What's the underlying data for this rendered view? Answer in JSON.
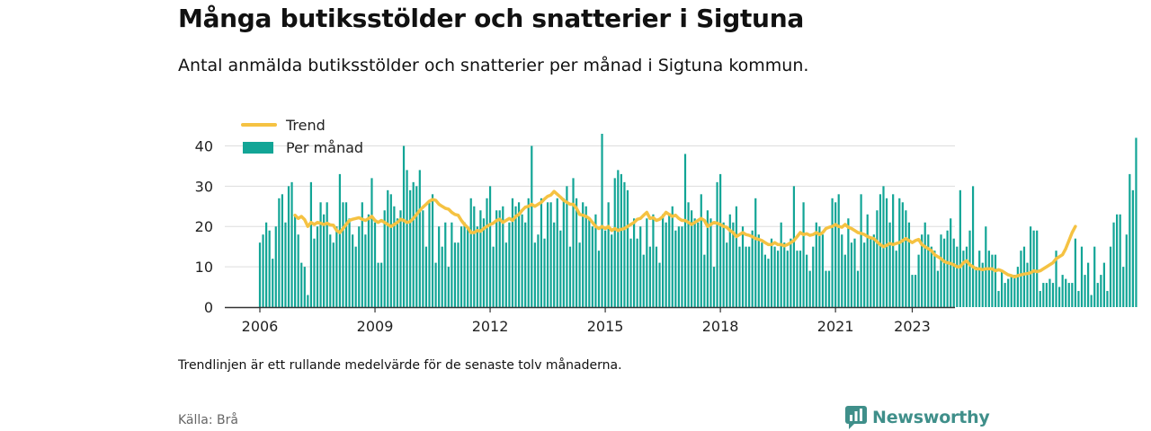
{
  "title": "Många butiksstölder och snatterier i Sigtuna",
  "subtitle": "Antal anmälda butiksstölder och snatterier per månad i Sigtuna kommun.",
  "note": "Trendlinjen är ett rullande medelvärde för de senaste tolv månaderna.",
  "source": "Källa: Brå",
  "brand": {
    "name": "Newsworthy",
    "icon": "newsworthy-logo-icon"
  },
  "colors": {
    "bars": "#12a596",
    "trend": "#f5c242",
    "axis": "#333333",
    "grid": "#dddddd"
  },
  "chart_data": {
    "type": "bar",
    "x_start": "2006-01",
    "x_end": "2023-04",
    "ylim": [
      0,
      43
    ],
    "yticks": [
      0,
      10,
      20,
      30,
      40
    ],
    "xticks": [
      "2006",
      "2009",
      "2012",
      "2015",
      "2018",
      "2021",
      "2023"
    ],
    "grid": true,
    "legend_position": "top-left",
    "series": [
      {
        "name": "Per månad",
        "type": "bar",
        "values": [
          16,
          18,
          21,
          19,
          12,
          20,
          27,
          28,
          21,
          30,
          31,
          23,
          18,
          11,
          10,
          3,
          31,
          17,
          20,
          26,
          23,
          26,
          18,
          16,
          20,
          33,
          26,
          26,
          22,
          18,
          15,
          20,
          26,
          18,
          23,
          32,
          21,
          11,
          11,
          24,
          29,
          28,
          25,
          22,
          24,
          40,
          34,
          29,
          31,
          30,
          34,
          24,
          15,
          26,
          28,
          11,
          20,
          15,
          21,
          10,
          21,
          16,
          16,
          20,
          21,
          20,
          27,
          25,
          20,
          24,
          22,
          27,
          30,
          15,
          24,
          24,
          25,
          16,
          21,
          27,
          25,
          26,
          23,
          21,
          27,
          40,
          16,
          18,
          27,
          17,
          26,
          26,
          21,
          27,
          19,
          27,
          30,
          15,
          32,
          27,
          16,
          26,
          25,
          22,
          20,
          23,
          14,
          43,
          19,
          26,
          18,
          32,
          34,
          33,
          31,
          29,
          17,
          22,
          17,
          20,
          13,
          22,
          15,
          23,
          15,
          11,
          23,
          21,
          23,
          25,
          19,
          20,
          20,
          38,
          26,
          24,
          22,
          21,
          28,
          13,
          24,
          22,
          10,
          31,
          33,
          21,
          16,
          23,
          21,
          25,
          15,
          20,
          15,
          15,
          19,
          27,
          18,
          16,
          13,
          12,
          17,
          15,
          14,
          21,
          16,
          14,
          17,
          30,
          14,
          14,
          26,
          13,
          9,
          15,
          21,
          20,
          18,
          9,
          9,
          27,
          26,
          28,
          18,
          13,
          22,
          16,
          17,
          9,
          28,
          16,
          23,
          17,
          18,
          24,
          28,
          30,
          27,
          21,
          28,
          14,
          27,
          26,
          24,
          21,
          8,
          8,
          13,
          18,
          21,
          18,
          15,
          14,
          9,
          18,
          17,
          19,
          22,
          17,
          15,
          29,
          14,
          15,
          19,
          30,
          10,
          14,
          11,
          20,
          14,
          13,
          13,
          4,
          9,
          6,
          7,
          8,
          8,
          10,
          14,
          15,
          11,
          20,
          19,
          19,
          4,
          6,
          6,
          7,
          6,
          14,
          5,
          8,
          7,
          6,
          6,
          17,
          4,
          15,
          8,
          11,
          3,
          15,
          6,
          8,
          11,
          4,
          15,
          21,
          23,
          23,
          10,
          18,
          33,
          29,
          42
        ]
      },
      {
        "name": "Trend",
        "type": "line",
        "values": [
          null,
          null,
          null,
          null,
          null,
          null,
          null,
          null,
          null,
          null,
          null,
          22.8,
          22.0,
          22.5,
          21.7,
          20.0,
          21.0,
          20.5,
          21.0,
          20.8,
          20.5,
          20.8,
          20.4,
          20.3,
          19.0,
          18.5,
          19.5,
          20.5,
          21.5,
          21.8,
          22.0,
          22.2,
          21.8,
          21.5,
          22.0,
          22.5,
          21.5,
          21.0,
          21.5,
          21.0,
          20.5,
          20.0,
          20.5,
          21.0,
          21.8,
          21.5,
          21.0,
          21.2,
          22.0,
          23.0,
          24.0,
          24.8,
          25.5,
          26.3,
          26.7,
          26.5,
          25.5,
          25.0,
          24.5,
          24.3,
          23.5,
          23.0,
          22.8,
          21.5,
          20.5,
          19.7,
          18.5,
          18.5,
          19.0,
          18.8,
          19.5,
          20.0,
          20.5,
          20.8,
          21.5,
          21.8,
          21.0,
          21.5,
          22.0,
          21.5,
          22.5,
          23.0,
          24.0,
          24.8,
          25.0,
          25.5,
          25.0,
          25.5,
          26.0,
          26.8,
          27.5,
          27.8,
          28.7,
          28.0,
          27.3,
          26.5,
          26.0,
          25.5,
          25.5,
          24.5,
          23.0,
          22.8,
          22.5,
          22.0,
          21.0,
          20.0,
          19.5,
          20.0,
          19.5,
          20.0,
          19.0,
          19.5,
          19.0,
          19.3,
          19.5,
          20.0,
          20.5,
          21.0,
          21.8,
          22.0,
          22.8,
          23.5,
          22.0,
          22.2,
          21.5,
          21.8,
          22.5,
          23.5,
          23.0,
          22.5,
          22.8,
          22.0,
          21.5,
          21.5,
          21.0,
          20.5,
          21.0,
          21.5,
          22.0,
          21.5,
          20.0,
          20.5,
          21.0,
          20.8,
          20.5,
          20.0,
          19.8,
          19.0,
          18.5,
          17.5,
          18.0,
          18.5,
          18.0,
          17.8,
          17.5,
          17.0,
          16.8,
          16.5,
          16.0,
          15.5,
          15.5,
          16.0,
          15.5,
          15.5,
          15.2,
          15.5,
          16.0,
          16.5,
          17.5,
          18.5,
          18.0,
          18.2,
          17.8,
          18.0,
          18.5,
          18.0,
          18.5,
          19.5,
          19.8,
          20.0,
          20.5,
          20.0,
          19.8,
          20.5,
          19.8,
          19.5,
          19.0,
          18.5,
          18.3,
          18.0,
          17.5,
          17.2,
          17.0,
          16.2,
          15.5,
          15.0,
          15.3,
          15.8,
          15.5,
          15.8,
          16.0,
          16.5,
          17.0,
          16.5,
          16.0,
          16.5,
          16.8,
          15.5,
          15.0,
          14.5,
          14.0,
          13.0,
          12.5,
          12.0,
          11.3,
          11.0,
          10.8,
          10.5,
          10.0,
          10.0,
          11.0,
          11.5,
          10.5,
          10.0,
          9.5,
          9.5,
          9.3,
          9.5,
          9.5,
          9.5,
          9.0,
          9.3,
          9.0,
          8.5,
          8.0,
          7.8,
          7.5,
          7.8,
          8.0,
          8.2,
          8.3,
          8.5,
          9.0,
          8.8,
          9.0,
          9.5,
          10.0,
          10.5,
          11.0,
          12.0,
          12.5,
          13.0,
          14.5,
          16.5,
          18.5,
          20.0
        ]
      }
    ]
  }
}
